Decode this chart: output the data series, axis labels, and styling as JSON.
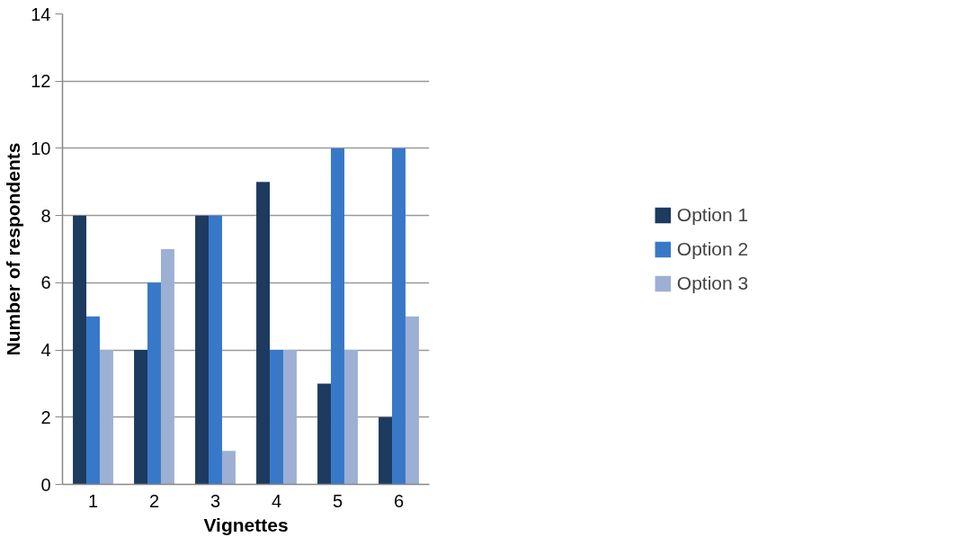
{
  "chart_data": {
    "type": "bar",
    "xlabel": "Vignettes",
    "ylabel": "Number of respondents",
    "categories": [
      "1",
      "2",
      "3",
      "4",
      "5",
      "6"
    ],
    "series": [
      {
        "name": "Option 1",
        "color": "#1d3a5f",
        "values": [
          8,
          4,
          8,
          9,
          3,
          2
        ]
      },
      {
        "name": "Option 2",
        "color": "#3878c8",
        "values": [
          5,
          6,
          8,
          4,
          10,
          10
        ]
      },
      {
        "name": "Option 3",
        "color": "#9db0d3",
        "values": [
          4,
          7,
          1,
          4,
          4,
          5
        ]
      }
    ],
    "ylim": [
      0,
      14
    ],
    "yticks": [
      0,
      2,
      4,
      6,
      8,
      10,
      12,
      14
    ],
    "grid": "y",
    "legend": "right"
  }
}
